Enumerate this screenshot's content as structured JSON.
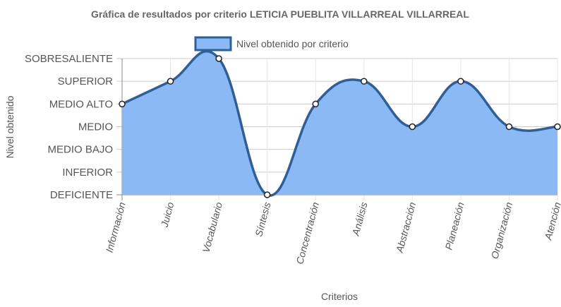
{
  "chart_data": {
    "type": "line",
    "title": "Gráfica de resultados por criterio LETICIA PUEBLITA VILLARREAL VILLARREAL",
    "xlabel": "Criterios",
    "ylabel": "Nivel obtenido",
    "categories": [
      "Información",
      "Juicio",
      "Vocabulario",
      "Síntesis",
      "Concentración",
      "Análisis",
      "Abstracción",
      "Planeación",
      "Organización",
      "Atención"
    ],
    "y_levels": [
      "DEFICIENTE",
      "INFERIOR",
      "MEDIO BAJO",
      "MEDIO",
      "MEDIO ALTO",
      "SUPERIOR",
      "SOBRESALIENTE"
    ],
    "ylim": [
      0,
      6
    ],
    "series": [
      {
        "name": "Nivel obtenido por criterio",
        "values": [
          4,
          5,
          6,
          0,
          4,
          5,
          3,
          5,
          3,
          3
        ],
        "value_labels": [
          "MEDIO ALTO",
          "SUPERIOR",
          "SOBRESALIENTE",
          "DEFICIENTE",
          "MEDIO ALTO",
          "SUPERIOR",
          "MEDIO",
          "SUPERIOR",
          "MEDIO",
          "MEDIO"
        ]
      }
    ],
    "fill": true,
    "curve": "smooth",
    "legend_position": "top",
    "grid": true,
    "colors": {
      "fill": "#8ab9f5",
      "line": "#2f5f96",
      "point_fill": "#ffffff",
      "point_stroke": "#222222"
    }
  }
}
